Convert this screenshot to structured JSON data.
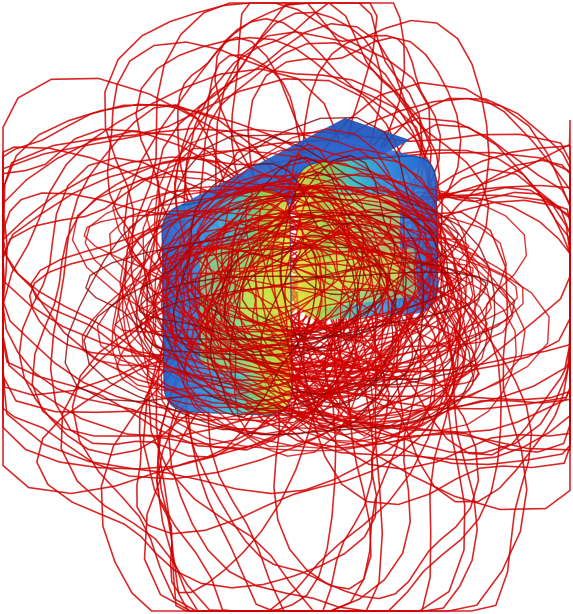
{
  "figure": {
    "kind": "3d-field-line-visualization",
    "colors": {
      "background": "#ffffff",
      "field_line": "#d10000",
      "field_line_dark": "#8a0000",
      "coil_blue": "#2a6fd8",
      "coil_cyan": "#34c7d6",
      "coil_green": "#8fd04a",
      "coil_yellow": "#f2e43a"
    }
  }
}
